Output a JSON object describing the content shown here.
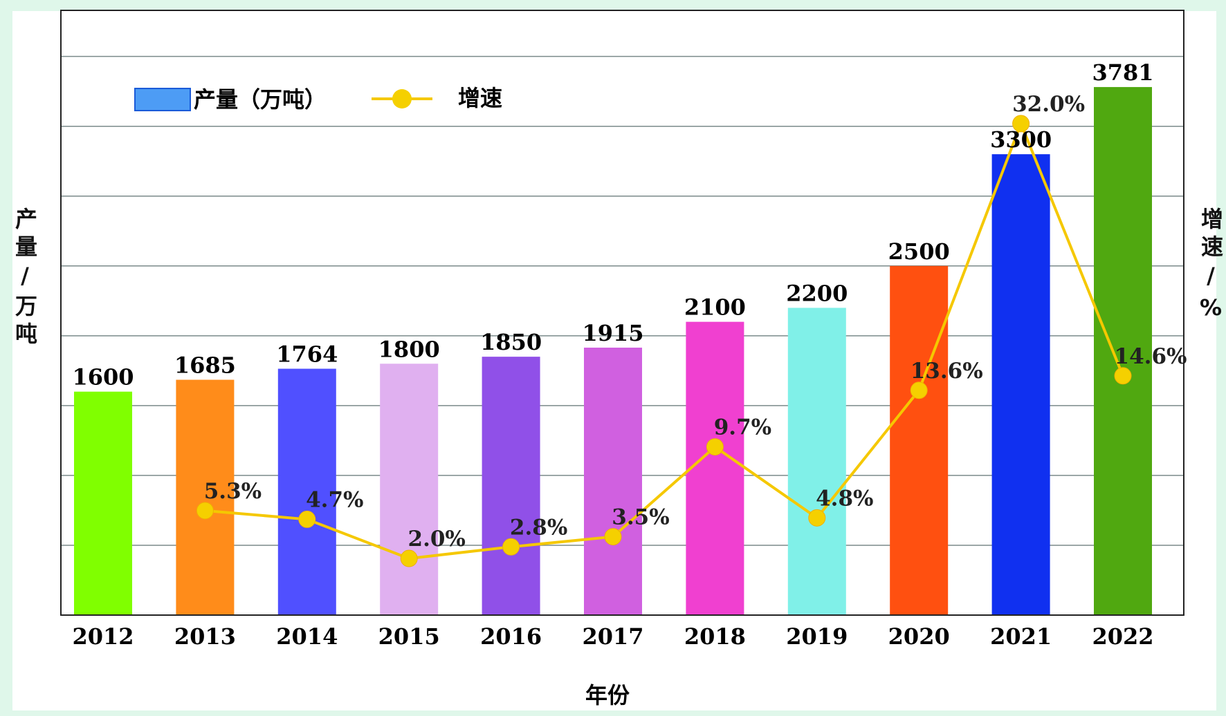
{
  "chart_data": {
    "type": "bar",
    "title": "",
    "xlabel": "年份",
    "ylabel": "产量/万吨",
    "y2label": "增速/%",
    "categories": [
      "2012",
      "2013",
      "2014",
      "2015",
      "2016",
      "2017",
      "2018",
      "2019",
      "2020",
      "2021",
      "2022"
    ],
    "series": [
      {
        "name": "产量（万吨）",
        "type": "bar",
        "values": [
          1600,
          1685,
          1764,
          1800,
          1850,
          1915,
          2100,
          2200,
          2500,
          3300,
          3781
        ],
        "colors": [
          "#80ff00",
          "#ff8c1a",
          "#5050ff",
          "#e0b0f0",
          "#9050e8",
          "#d060e0",
          "#f040d0",
          "#80f0e8",
          "#ff5010",
          "#1030f0",
          "#50a810"
        ]
      },
      {
        "name": "增速",
        "type": "line",
        "values": [
          null,
          5.3,
          4.7,
          2.0,
          2.8,
          3.5,
          9.7,
          4.8,
          13.6,
          32.0,
          14.6
        ],
        "labels": [
          "",
          "5.3%",
          "4.7%",
          "2.0%",
          "2.8%",
          "3.5%",
          "9.7%",
          "4.8%",
          "13.6%",
          "32.0%",
          "14.6%"
        ],
        "color": "#f5c800"
      }
    ],
    "ylim": [
      0,
      4330
    ],
    "grid_step": 500,
    "y2lim": [
      0,
      36
    ],
    "grid": true,
    "legend": "top-left"
  }
}
